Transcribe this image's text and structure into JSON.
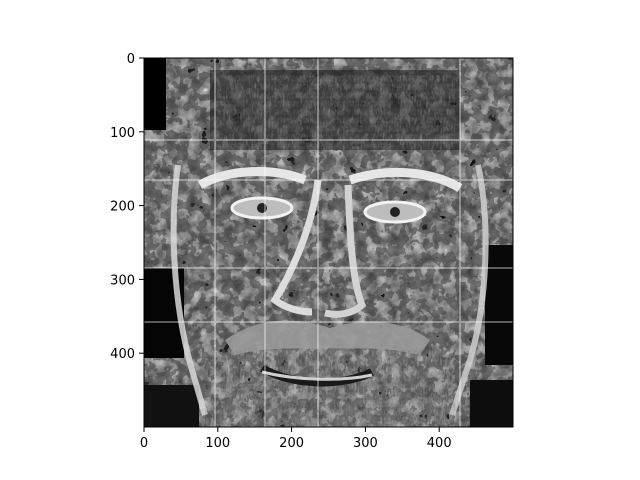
{
  "chart_data": {
    "type": "image",
    "colormap": "gray",
    "subject": "grayscale portrait of bearded man's face, block-processed",
    "title": "",
    "xlabel": "",
    "ylabel": "",
    "xlim": [
      0,
      500
    ],
    "ylim": [
      500,
      0
    ],
    "y_inverted": true,
    "grid": false,
    "xticks": [
      0,
      100,
      200,
      300,
      400
    ],
    "yticks": [
      0,
      100,
      200,
      300,
      400
    ],
    "xtick_labels": [
      "0",
      "100",
      "200",
      "300",
      "400"
    ],
    "ytick_labels": [
      "0",
      "100",
      "200",
      "300",
      "400"
    ]
  }
}
